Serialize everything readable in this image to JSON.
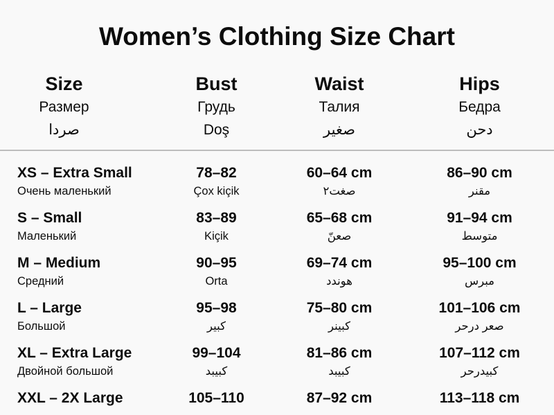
{
  "chart_data": {
    "type": "table",
    "title": "Women’s Clothing Size Chart",
    "columns": [
      "Size",
      "Bust",
      "Waist",
      "Hips"
    ],
    "header": [
      {
        "main": "Size",
        "sub1": "Размер",
        "sub2": "صردا"
      },
      {
        "main": "Bust",
        "sub1": "Грудь",
        "sub2": "Doş"
      },
      {
        "main": "Waist",
        "sub1": "Талия",
        "sub2": "صغير"
      },
      {
        "main": "Hips",
        "sub1": "Бедра",
        "sub2": "دحن"
      }
    ],
    "rows": [
      {
        "cells": [
          {
            "main": "XS – Extra Small",
            "sub": "Очень маленький"
          },
          {
            "main": "78–82",
            "sub": "Çox kiçik"
          },
          {
            "main": "60–64 cm",
            "sub": "صغت٢"
          },
          {
            "main": "86–90 cm",
            "sub": "مقنر"
          }
        ]
      },
      {
        "cells": [
          {
            "main": "S – Small",
            "sub": "Маленький"
          },
          {
            "main": "83–89",
            "sub": "Kiçik"
          },
          {
            "main": "65–68 cm",
            "sub": "صعنّ"
          },
          {
            "main": "91–94 cm",
            "sub": "متوسط"
          }
        ]
      },
      {
        "cells": [
          {
            "main": "M – Medium",
            "sub": "Средний"
          },
          {
            "main": "90–95",
            "sub": "Orta"
          },
          {
            "main": "69–74 cm",
            "sub": "هوندد"
          },
          {
            "main": "95–100 cm",
            "sub": "مبرس"
          }
        ]
      },
      {
        "cells": [
          {
            "main": "L – Large",
            "sub": "Большой"
          },
          {
            "main": "95–98",
            "sub": "كبير"
          },
          {
            "main": "75–80 cm",
            "sub": "كبينر"
          },
          {
            "main": "101–106 cm",
            "sub": "صعر درحر"
          }
        ]
      },
      {
        "cells": [
          {
            "main": "XL – Extra Large",
            "sub": "Двойной большой"
          },
          {
            "main": "99–104",
            "sub": "كبيبد"
          },
          {
            "main": "81–86 cm",
            "sub": "كبيبد"
          },
          {
            "main": "107–112 cm",
            "sub": "كبيدرحر"
          }
        ]
      },
      {
        "cells": [
          {
            "main": "XXL – 2X Large",
            "sub": ""
          },
          {
            "main": "105–110",
            "sub": ""
          },
          {
            "main": "87–92 cm",
            "sub": ""
          },
          {
            "main": "113–118 cm",
            "sub": ""
          }
        ]
      }
    ]
  }
}
